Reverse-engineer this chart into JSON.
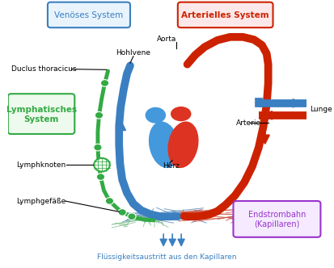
{
  "bg_color": "#ffffff",
  "title_venous": "Venöses System",
  "title_arterial": "Arterielles System",
  "label_lymph_system": "Lymphatisches\nSystem",
  "label_duclus": "Duclus thoracicus",
  "label_hohlvene": "Hohlvene",
  "label_aorta": "Aorta",
  "label_lunge": "Lunge",
  "label_arterie": "Arterie",
  "label_herz": "Herz",
  "label_lymphknoten": "Lymphknoten",
  "label_lymphgefasse": "Lymphgefäße",
  "label_endstrombahn": "Endstrombahn\n(Kapillaren)",
  "label_fluessigkeit": "Flüssigkeitsaustritt aus den Kapillaren",
  "color_venous": "#3a7fc1",
  "color_arterial": "#cc2200",
  "color_lymph": "#33aa44",
  "color_cap_blue": "#5588bb",
  "color_cap_red": "#cc5544",
  "color_cap_green": "#77bb88",
  "heart_blue": "#4499dd",
  "heart_red": "#dd3322",
  "arrow_blue": "#1144aa",
  "arrow_red": "#cc1100",
  "purple": "#9933cc"
}
